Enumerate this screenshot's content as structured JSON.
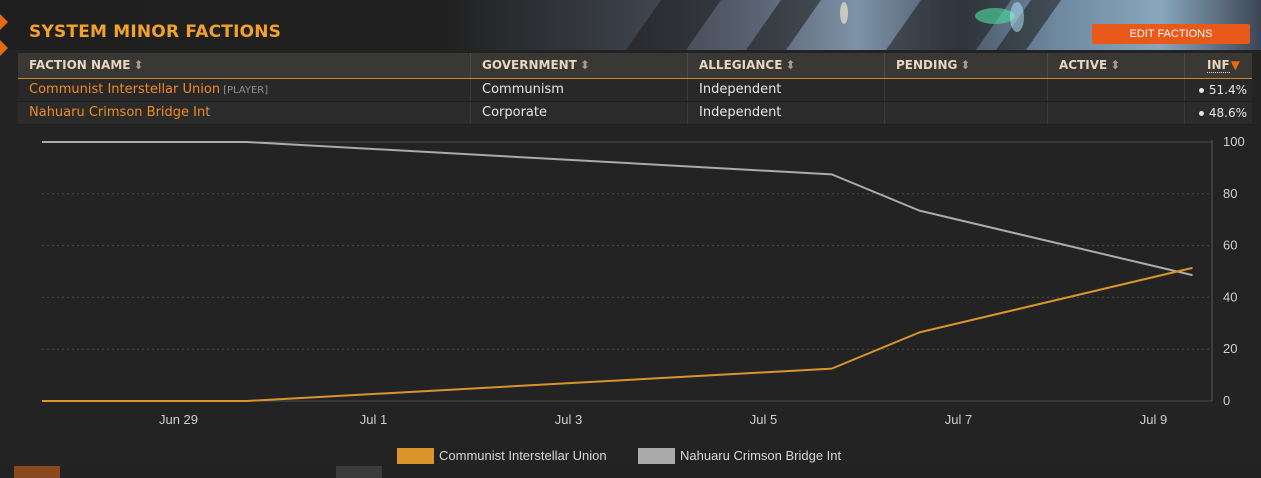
{
  "header": {
    "title": "SYSTEM MINOR FACTIONS",
    "edit_button": "EDIT FACTIONS"
  },
  "table": {
    "columns": [
      {
        "label": "FACTION NAME",
        "sort_icon": "⬍"
      },
      {
        "label": "GOVERNMENT",
        "sort_icon": "⬍"
      },
      {
        "label": "ALLEGIANCE",
        "sort_icon": "⬍"
      },
      {
        "label": "PENDING",
        "sort_icon": "⬍"
      },
      {
        "label": "ACTIVE",
        "sort_icon": "⬍"
      },
      {
        "label": "INF",
        "sort_icon": "▼"
      }
    ],
    "rows": [
      {
        "name": "Communist Interstellar Union",
        "tag": "[PLAYER]",
        "government": "Communism",
        "allegiance": "Independent",
        "pending": "",
        "active": "",
        "influence": "51.4%"
      },
      {
        "name": "Nahuaru Crimson Bridge Int",
        "tag": "",
        "government": "Corporate",
        "allegiance": "Independent",
        "pending": "",
        "active": "",
        "influence": "48.6%"
      }
    ]
  },
  "chart_data": {
    "type": "line",
    "xlabel": "",
    "ylabel": "",
    "ylim": [
      0,
      100
    ],
    "y_ticks": [
      "0",
      "20",
      "40",
      "60",
      "80",
      "100"
    ],
    "x_ticks": [
      "Jun 29",
      "Jul 1",
      "Jul 3",
      "Jul 5",
      "Jul 7",
      "Jul 9"
    ],
    "x_range": [
      "Jun 27.6",
      "Jul 9.6"
    ],
    "grid": true,
    "legend": "bottom-center",
    "series": [
      {
        "name": "Communist Interstellar Union",
        "color": "#d9952b",
        "points": [
          [
            "Jun 27.6",
            0
          ],
          [
            "Jun 29.7",
            0
          ],
          [
            "Jul 5.7",
            12.5
          ],
          [
            "Jul 6.6",
            26.5
          ],
          [
            "Jul 9.4",
            51.4
          ]
        ]
      },
      {
        "name": "Nahuaru Crimson Bridge Int",
        "color": "#ababab",
        "points": [
          [
            "Jun 27.6",
            100
          ],
          [
            "Jun 29.7",
            100
          ],
          [
            "Jul 5.7",
            87.5
          ],
          [
            "Jul 6.6",
            73.5
          ],
          [
            "Jul 9.4",
            48.6
          ]
        ]
      }
    ]
  },
  "colors": {
    "accent": "#e8591a",
    "faction_name": "#f08a24",
    "title": "#f2a12a",
    "series_1": "#d9952b",
    "series_2": "#ababab"
  }
}
